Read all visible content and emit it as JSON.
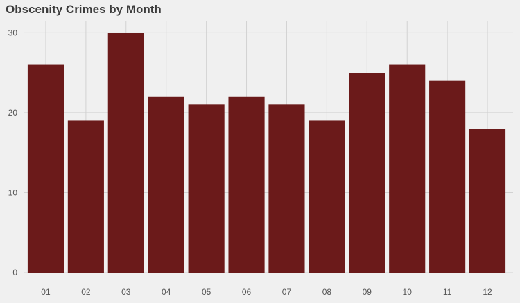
{
  "chart_data": {
    "type": "bar",
    "title": "Obscenity Crimes by Month",
    "xlabel": "",
    "ylabel": "",
    "categories": [
      "01",
      "02",
      "03",
      "04",
      "05",
      "06",
      "07",
      "08",
      "09",
      "10",
      "11",
      "12"
    ],
    "values": [
      26,
      19,
      30,
      22,
      21,
      22,
      21,
      19,
      25,
      26,
      24,
      18
    ],
    "ylim": [
      0,
      31.5
    ],
    "yticks": [
      0,
      10,
      20,
      30
    ],
    "grid": true,
    "bar_color": "#6b1a1a",
    "background_color": "#f0f0f0",
    "grid_color": "#d2d2d2"
  }
}
